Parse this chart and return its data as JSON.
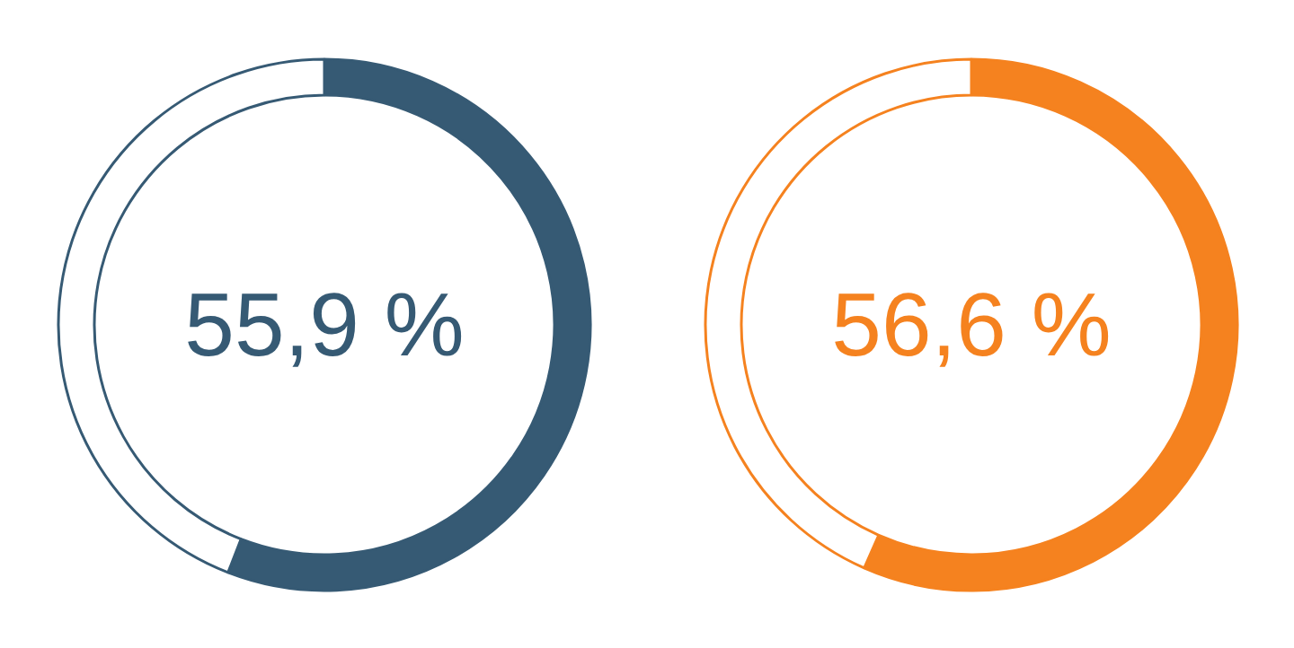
{
  "chart_data": [
    {
      "type": "donut",
      "categories": [
        null,
        null
      ],
      "values": [
        55.9,
        44.1
      ],
      "colors": [
        "#365a74",
        "#ffffff"
      ],
      "annotations": [
        "55,9 %"
      ]
    },
    {
      "type": "donut",
      "categories": [
        null,
        null
      ],
      "values": [
        56.6,
        43.4
      ],
      "colors": [
        "#f5821f",
        "#ffffff"
      ],
      "annotations": [
        "56,6 %"
      ]
    }
  ]
}
